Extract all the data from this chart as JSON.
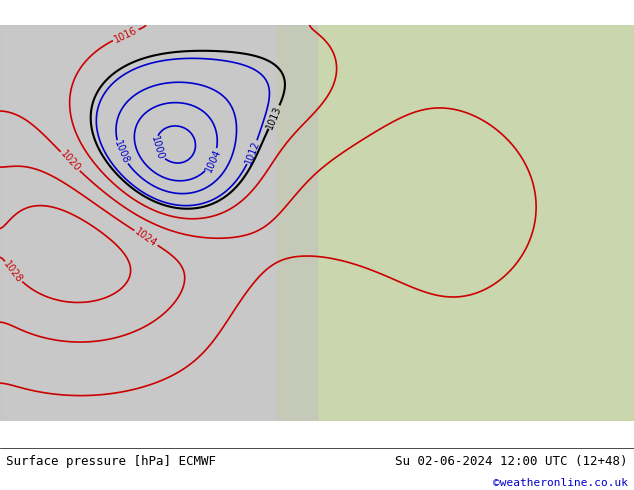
{
  "title_left": "Surface pressure [hPa] ECMWF",
  "title_right": "Su 02-06-2024 12:00 UTC (12+48)",
  "copyright": "©weatheronline.co.uk",
  "bg_color": "#d0d0d0",
  "land_color_west": "#c8c8c8",
  "land_color_east": "#b8d4a0",
  "sea_color": "#e8e8e8",
  "bottom_bar_color": "#ffffff",
  "bottom_text_color": "#000000",
  "copyright_color": "#0000cc",
  "font_size_bottom": 9,
  "font_size_labels": 7.5,
  "contour_color_normal": "#cc0000",
  "contour_color_blue": "#0000cc",
  "contour_color_black": "#000000"
}
